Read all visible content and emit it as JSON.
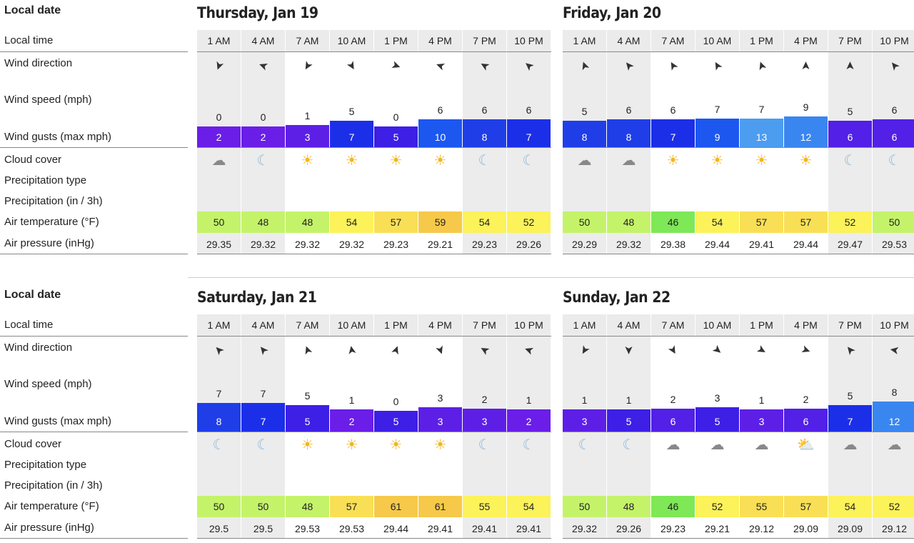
{
  "labels": {
    "local_date": "Local date",
    "local_time": "Local time",
    "wind_direction": "Wind direction",
    "wind_speed": "Wind speed (mph)",
    "wind_gusts": "Wind gusts (max mph)",
    "cloud_cover": "Cloud cover",
    "precip_type": "Precipitation type",
    "precip_amount": "Precipitation (in / 3h)",
    "air_temp": "Air temperature (°F)",
    "air_pressure": "Air pressure (inHg)"
  },
  "days": [
    {
      "title": "Thursday, Jan 19",
      "times": [
        "1 AM",
        "4 AM",
        "7 AM",
        "10 AM",
        "1 PM",
        "4 PM",
        "7 PM",
        "10 PM"
      ],
      "shaded": [
        true,
        true,
        false,
        false,
        false,
        false,
        true,
        true
      ],
      "wind_dir_deg": [
        200,
        290,
        210,
        150,
        110,
        290,
        300,
        310
      ],
      "wind_speed": [
        "0",
        "0",
        "1",
        "5",
        "0",
        "6",
        "6",
        "6"
      ],
      "wind_gusts": [
        "2",
        "2",
        "3",
        "7",
        "5",
        "10",
        "8",
        "7"
      ],
      "gust_colors": [
        "#6a1ee8",
        "#6a1ee8",
        "#5d1fe6",
        "#1c2fe8",
        "#3d1fe6",
        "#1c57f0",
        "#1f3ee8",
        "#1c2fe8"
      ],
      "cloud": [
        "partly-cloudy-night",
        "moon",
        "sun",
        "sun",
        "sun",
        "sun",
        "moon",
        "moon"
      ],
      "air_temp": [
        "50",
        "48",
        "48",
        "54",
        "57",
        "59",
        "54",
        "52"
      ],
      "temp_colors": [
        "#c4f36a",
        "#c4f36a",
        "#c4f36a",
        "#fcf25a",
        "#f9df55",
        "#f6c94a",
        "#fcf25a",
        "#fcf25a"
      ],
      "air_pressure": [
        "29.35",
        "29.32",
        "29.32",
        "29.32",
        "29.23",
        "29.21",
        "29.23",
        "29.26"
      ]
    },
    {
      "title": "Friday, Jan 20",
      "times": [
        "1 AM",
        "4 AM",
        "7 AM",
        "10 AM",
        "1 PM",
        "4 PM",
        "7 PM",
        "10 PM"
      ],
      "shaded": [
        true,
        true,
        false,
        false,
        false,
        false,
        true,
        true
      ],
      "wind_dir_deg": [
        340,
        320,
        330,
        330,
        340,
        0,
        0,
        320
      ],
      "wind_speed": [
        "5",
        "6",
        "6",
        "7",
        "7",
        "9",
        "5",
        "6"
      ],
      "wind_gusts": [
        "8",
        "8",
        "7",
        "9",
        "13",
        "12",
        "6",
        "6"
      ],
      "gust_colors": [
        "#1f3ee8",
        "#1f3ee8",
        "#1c2fe8",
        "#1c57f0",
        "#4c9cf0",
        "#3a86f0",
        "#5220e6",
        "#5220e6"
      ],
      "cloud": [
        "partly-cloudy-night",
        "partly-cloudy-night",
        "sun",
        "sun",
        "sun",
        "sun",
        "moon",
        "moon"
      ],
      "air_temp": [
        "50",
        "48",
        "46",
        "54",
        "57",
        "57",
        "52",
        "50"
      ],
      "temp_colors": [
        "#c4f36a",
        "#c4f36a",
        "#7ee857",
        "#fcf25a",
        "#f9df55",
        "#f9df55",
        "#fcf25a",
        "#c4f36a"
      ],
      "air_pressure": [
        "29.29",
        "29.32",
        "29.38",
        "29.44",
        "29.41",
        "29.44",
        "29.47",
        "29.53"
      ]
    },
    {
      "title": "Saturday, Jan 21",
      "times": [
        "1 AM",
        "4 AM",
        "7 AM",
        "10 AM",
        "1 PM",
        "4 PM",
        "7 PM",
        "10 PM"
      ],
      "shaded": [
        true,
        true,
        false,
        false,
        false,
        false,
        true,
        true
      ],
      "wind_dir_deg": [
        315,
        320,
        340,
        350,
        20,
        160,
        300,
        290
      ],
      "wind_speed": [
        "7",
        "7",
        "5",
        "1",
        "0",
        "3",
        "2",
        "1"
      ],
      "wind_gusts": [
        "8",
        "7",
        "5",
        "2",
        "5",
        "3",
        "3",
        "2"
      ],
      "gust_colors": [
        "#1f3ee8",
        "#1c2fe8",
        "#3d1fe6",
        "#6a1ee8",
        "#3d1fe6",
        "#5d1fe6",
        "#5d1fe6",
        "#6a1ee8"
      ],
      "cloud": [
        "moon",
        "moon",
        "sun",
        "sun",
        "sun",
        "sun",
        "moon",
        "moon"
      ],
      "air_temp": [
        "50",
        "50",
        "48",
        "57",
        "61",
        "61",
        "55",
        "54"
      ],
      "temp_colors": [
        "#c4f36a",
        "#c4f36a",
        "#c4f36a",
        "#f9df55",
        "#f6c94a",
        "#f6c94a",
        "#fcf25a",
        "#fcf25a"
      ],
      "air_pressure": [
        "29.5",
        "29.5",
        "29.53",
        "29.53",
        "29.44",
        "29.41",
        "29.41",
        "29.41"
      ]
    },
    {
      "title": "Sunday, Jan 22",
      "times": [
        "1 AM",
        "4 AM",
        "7 AM",
        "10 AM",
        "1 PM",
        "4 PM",
        "7 PM",
        "10 PM"
      ],
      "shaded": [
        true,
        true,
        false,
        false,
        false,
        false,
        true,
        true
      ],
      "wind_dir_deg": [
        210,
        180,
        150,
        130,
        120,
        110,
        320,
        280
      ],
      "wind_speed": [
        "1",
        "1",
        "2",
        "3",
        "1",
        "2",
        "5",
        "8"
      ],
      "wind_gusts": [
        "3",
        "5",
        "6",
        "5",
        "3",
        "6",
        "7",
        "12"
      ],
      "gust_colors": [
        "#5d1fe6",
        "#3d1fe6",
        "#5220e6",
        "#3d1fe6",
        "#5d1fe6",
        "#5220e6",
        "#1c2fe8",
        "#3a86f0"
      ],
      "cloud": [
        "moon",
        "moon",
        "cloud",
        "cloud",
        "cloud",
        "partly-sunny",
        "cloud",
        "cloud"
      ],
      "air_temp": [
        "50",
        "48",
        "46",
        "52",
        "55",
        "57",
        "54",
        "52"
      ],
      "temp_colors": [
        "#c4f36a",
        "#c4f36a",
        "#7ee857",
        "#fcf25a",
        "#f9df55",
        "#f9df55",
        "#fcf25a",
        "#fcf25a"
      ],
      "air_pressure": [
        "29.32",
        "29.26",
        "29.23",
        "29.21",
        "29.12",
        "29.09",
        "29.09",
        "29.12"
      ]
    }
  ],
  "icons": {
    "sun": "☀",
    "moon": "☾",
    "cloud": "☁",
    "partly-cloudy-night": "☁",
    "partly-sunny": "⛅",
    "arrow": "➤"
  }
}
